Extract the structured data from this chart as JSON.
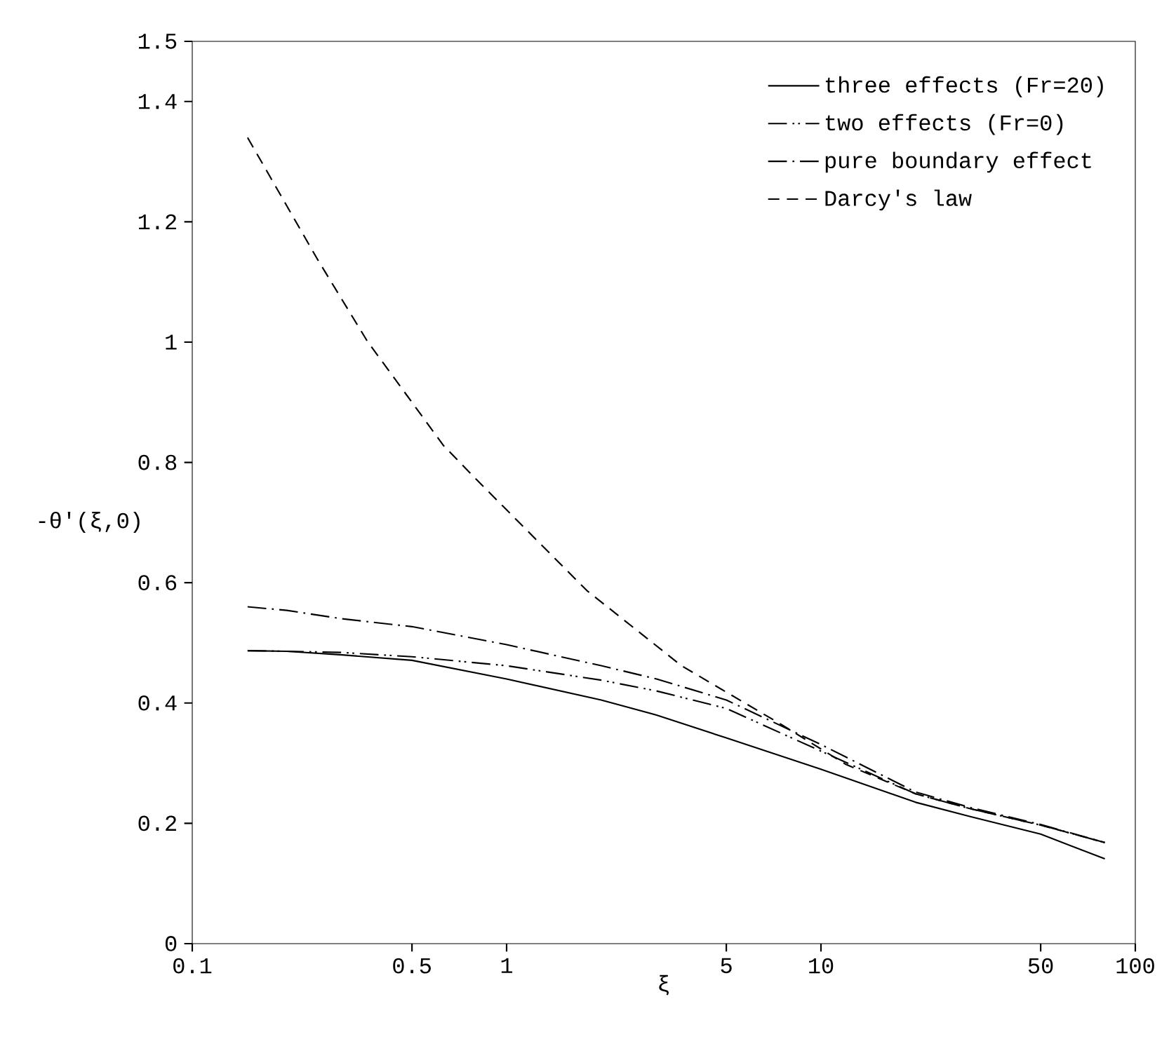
{
  "chart_data": {
    "type": "line",
    "xlabel": "ξ",
    "ylabel": "-θ'(ξ,0)",
    "log": "x",
    "xlim": [
      0.1,
      100
    ],
    "ylim": [
      0,
      1.5
    ],
    "xticks": [
      0.1,
      0.5,
      1,
      5,
      10,
      50,
      100
    ],
    "yticks": [
      0,
      0.2,
      0.4,
      0.6,
      0.8,
      1,
      1.2,
      1.4,
      1.5
    ],
    "legend": "top right",
    "grid": false,
    "series": [
      {
        "name": "three effects (Fr=20)",
        "color": "#000000",
        "line_style": "solid",
        "x": [
          0.15,
          0.2,
          0.3,
          0.5,
          1,
          2,
          3,
          5,
          10,
          20,
          30,
          50,
          80
        ],
        "values": [
          0.487,
          0.486,
          0.48,
          0.471,
          0.44,
          0.405,
          0.38,
          0.342,
          0.29,
          0.235,
          0.211,
          0.182,
          0.141
        ]
      },
      {
        "name": "two effects (Fr=0)",
        "color": "#000000",
        "line_style": "dashdotdot",
        "x": [
          0.15,
          0.2,
          0.3,
          0.5,
          1,
          2,
          3,
          5,
          10,
          20,
          30,
          50,
          80
        ],
        "values": [
          0.487,
          0.486,
          0.484,
          0.477,
          0.462,
          0.438,
          0.42,
          0.391,
          0.32,
          0.249,
          0.224,
          0.197,
          0.168
        ]
      },
      {
        "name": "pure boundary effect",
        "color": "#000000",
        "line_style": "dashdot",
        "x": [
          0.15,
          0.2,
          0.3,
          0.5,
          1,
          2,
          3,
          5,
          10,
          20,
          30,
          50,
          80
        ],
        "values": [
          0.56,
          0.554,
          0.54,
          0.527,
          0.497,
          0.462,
          0.44,
          0.405,
          0.331,
          0.252,
          0.226,
          0.198,
          0.168
        ]
      },
      {
        "name": "Darcy's law",
        "color": "#000000",
        "line_style": "dashed",
        "x": [
          0.15,
          0.25,
          0.36,
          0.63,
          0.8,
          1.8,
          3.6,
          7.5,
          12,
          20,
          30,
          50,
          80
        ],
        "values": [
          1.34,
          1.138,
          1.002,
          0.828,
          0.772,
          0.587,
          0.462,
          0.364,
          0.298,
          0.249,
          0.224,
          0.197,
          0.168
        ]
      }
    ]
  }
}
